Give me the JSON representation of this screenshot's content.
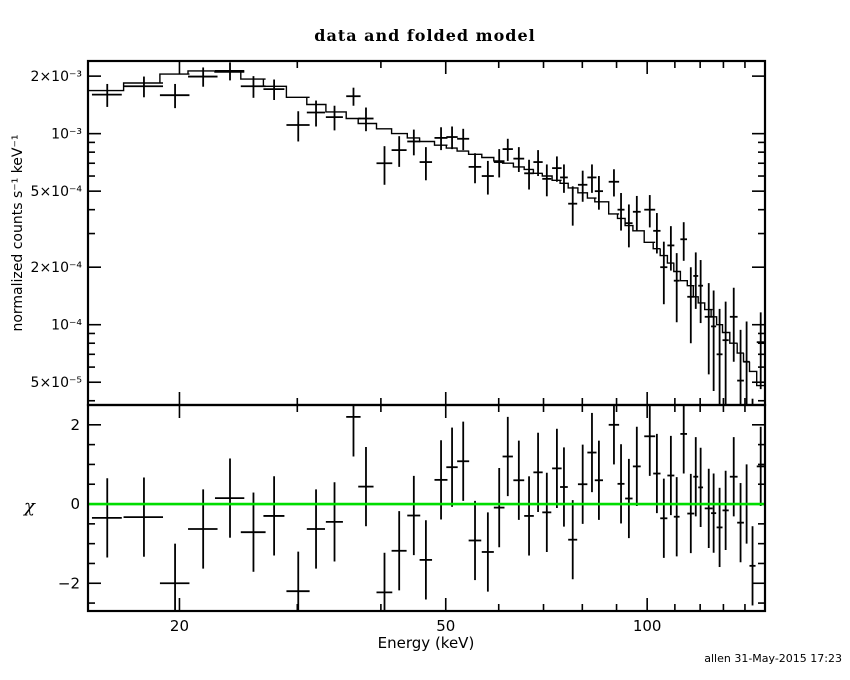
{
  "footer": {
    "timestamp": "allen 31-May-2015 17:23"
  },
  "colors": {
    "foreground": "#000000",
    "background": "#ffffff",
    "zero_line": "#00dd00"
  },
  "chart_data": {
    "type": "scatter",
    "title": "data and folded model",
    "xlabel": "Energy (keV)",
    "xscale": "log",
    "xlim": [
      14.6,
      150
    ],
    "grid": false,
    "legend": "none",
    "x_major_ticks": [
      {
        "v": 20,
        "label": "20"
      },
      {
        "v": 50,
        "label": "50"
      },
      {
        "v": 100,
        "label": "100"
      }
    ],
    "x_minor_ticks": [
      30,
      40,
      60,
      70,
      80,
      90,
      110,
      120,
      130,
      140
    ],
    "spectrum_panel": {
      "ylabel": "normalized counts s⁻¹ keV⁻¹",
      "yscale": "log",
      "ylim": [
        3.8e-05,
        0.0024
      ],
      "y_major_ticks": [
        {
          "v": 0.002,
          "label": "2×10⁻³"
        },
        {
          "v": 0.001,
          "label": "10⁻³"
        },
        {
          "v": 0.0005,
          "label": "5×10⁻⁴"
        },
        {
          "v": 0.0002,
          "label": "2×10⁻⁴"
        },
        {
          "v": 0.0001,
          "label": "10⁻⁴"
        },
        {
          "v": 5e-05,
          "label": "5×10⁻⁵"
        }
      ],
      "y_minor_ticks": [
        4e-05,
        6e-05,
        7e-05,
        8e-05,
        9e-05,
        0.0003,
        0.0004,
        0.0006,
        0.0007,
        0.0008,
        0.0009
      ],
      "series": [
        "data (crosses with error bars)",
        "folded model (stepped line)"
      ]
    },
    "chi_panel": {
      "ylabel": "χ",
      "yscale": "linear",
      "ylim": [
        -2.7,
        2.5
      ],
      "y_major_ticks": [
        {
          "v": 2,
          "label": "2"
        },
        {
          "v": 0,
          "label": "0"
        },
        {
          "v": -2,
          "label": "−2"
        }
      ],
      "y_minor_ticks": [
        1.5,
        1,
        0.5,
        -0.5,
        -1,
        -1.5,
        -2.5
      ],
      "chi_err": 1,
      "zero_line": 0
    },
    "bins": [
      {
        "e": 15.6,
        "de": 0.8,
        "rate": 0.0016,
        "rate_err": 0.00022,
        "model": 0.00168,
        "chi": -0.35
      },
      {
        "e": 17.7,
        "de": 1.2,
        "rate": 0.00177,
        "rate_err": 0.00022,
        "model": 0.00184,
        "chi": -0.33
      },
      {
        "e": 19.7,
        "de": 1.0,
        "rate": 0.00159,
        "rate_err": 0.00023,
        "model": 0.00205,
        "chi": -2.0
      },
      {
        "e": 21.7,
        "de": 1.1,
        "rate": 0.00199,
        "rate_err": 0.00023,
        "model": 0.00213,
        "chi": -0.63
      },
      {
        "e": 23.8,
        "de": 1.2,
        "rate": 0.00213,
        "rate_err": 0.00023,
        "model": 0.0021,
        "chi": 0.15
      },
      {
        "e": 25.8,
        "de": 1.1,
        "rate": 0.00177,
        "rate_err": 0.00023,
        "model": 0.00193,
        "chi": -0.71
      },
      {
        "e": 27.7,
        "de": 1.0,
        "rate": 0.00171,
        "rate_err": 0.00021,
        "model": 0.00177,
        "chi": -0.3
      },
      {
        "e": 30.1,
        "de": 1.2,
        "rate": 0.00111,
        "rate_err": 0.0002,
        "model": 0.00155,
        "chi": -2.2
      },
      {
        "e": 32.0,
        "de": 1.0,
        "rate": 0.00129,
        "rate_err": 0.0002,
        "model": 0.00142,
        "chi": -0.63
      },
      {
        "e": 34.1,
        "de": 1.0,
        "rate": 0.00122,
        "rate_err": 0.00018,
        "model": 0.0013,
        "chi": -0.45
      },
      {
        "e": 36.4,
        "de": 0.9,
        "rate": 0.00157,
        "rate_err": 0.00017,
        "model": 0.0012,
        "chi": 2.2
      },
      {
        "e": 38.0,
        "de": 1.0,
        "rate": 0.0012,
        "rate_err": 0.00017,
        "model": 0.00113,
        "chi": 0.44
      },
      {
        "e": 40.5,
        "de": 1.1,
        "rate": 0.0007,
        "rate_err": 0.00016,
        "model": 0.00106,
        "chi": -2.23
      },
      {
        "e": 42.6,
        "de": 1.1,
        "rate": 0.00082,
        "rate_err": 0.00015,
        "model": 0.001,
        "chi": -1.18
      },
      {
        "e": 44.8,
        "de": 1.0,
        "rate": 0.00091,
        "rate_err": 0.00014,
        "model": 0.00095,
        "chi": -0.29
      },
      {
        "e": 46.7,
        "de": 1.0,
        "rate": 0.00071,
        "rate_err": 0.00014,
        "model": 0.00091,
        "chi": -1.41
      },
      {
        "e": 49.2,
        "de": 1.1,
        "rate": 0.00095,
        "rate_err": 0.00013,
        "model": 0.00087,
        "chi": 0.61
      },
      {
        "e": 51.1,
        "de": 1.0,
        "rate": 0.00096,
        "rate_err": 0.00013,
        "model": 0.00084,
        "chi": 0.93
      },
      {
        "e": 53.1,
        "de": 1.1,
        "rate": 0.00094,
        "rate_err": 0.00012,
        "model": 0.00081,
        "chi": 1.08
      },
      {
        "e": 55.3,
        "de": 1.2,
        "rate": 0.00067,
        "rate_err": 0.00012,
        "model": 0.00078,
        "chi": -0.92
      },
      {
        "e": 57.8,
        "de": 1.2,
        "rate": 0.0006,
        "rate_err": 0.00012,
        "model": 0.00075,
        "chi": -1.21
      },
      {
        "e": 60.1,
        "de": 1.1,
        "rate": 0.00071,
        "rate_err": 0.00012,
        "model": 0.00072,
        "chi": -0.09
      },
      {
        "e": 61.9,
        "de": 1.1,
        "rate": 0.00083,
        "rate_err": 0.00011,
        "model": 0.0007,
        "chi": 1.2
      },
      {
        "e": 64.3,
        "de": 1.2,
        "rate": 0.00074,
        "rate_err": 0.00011,
        "model": 0.00067,
        "chi": 0.6
      },
      {
        "e": 66.6,
        "de": 1.1,
        "rate": 0.00062,
        "rate_err": 0.00011,
        "model": 0.00065,
        "chi": -0.3
      },
      {
        "e": 68.7,
        "de": 1.1,
        "rate": 0.00071,
        "rate_err": 0.00011,
        "model": 0.00062,
        "chi": 0.8
      },
      {
        "e": 70.8,
        "de": 1.1,
        "rate": 0.00058,
        "rate_err": 0.00011,
        "model": 0.0006,
        "chi": -0.21
      },
      {
        "e": 73.3,
        "de": 1.2,
        "rate": 0.00066,
        "rate_err": 0.0001,
        "model": 0.00057,
        "chi": 0.9
      },
      {
        "e": 75.1,
        "de": 1.0,
        "rate": 0.00059,
        "rate_err": 0.0001,
        "model": 0.00055,
        "chi": 0.43
      },
      {
        "e": 77.4,
        "de": 1.2,
        "rate": 0.00043,
        "rate_err": 0.0001,
        "model": 0.00052,
        "chi": -0.9
      },
      {
        "e": 80.1,
        "de": 1.3,
        "rate": 0.00054,
        "rate_err": 0.0001,
        "model": 0.00049,
        "chi": 0.5
      },
      {
        "e": 82.7,
        "de": 1.3,
        "rate": 0.00059,
        "rate_err": 0.0001,
        "model": 0.00046,
        "chi": 1.3
      },
      {
        "e": 84.7,
        "de": 1.2,
        "rate": 0.0005,
        "rate_err": 0.0001,
        "model": 0.00044,
        "chi": 0.6
      },
      {
        "e": 89.2,
        "de": 1.6,
        "rate": 0.00056,
        "rate_err": 9.1e-05,
        "model": 0.00038,
        "chi": 2.0
      },
      {
        "e": 91.4,
        "de": 1.1,
        "rate": 0.0004,
        "rate_err": 8.9e-05,
        "model": 0.00036,
        "chi": 0.51
      },
      {
        "e": 93.9,
        "de": 1.2,
        "rate": 0.00034,
        "rate_err": 8.6e-05,
        "model": 0.00033,
        "chi": 0.14
      },
      {
        "e": 96.5,
        "de": 1.3,
        "rate": 0.00039,
        "rate_err": 8.2e-05,
        "model": 0.00031,
        "chi": 0.95
      },
      {
        "e": 100.9,
        "de": 1.9,
        "rate": 0.0004,
        "rate_err": 7.7e-05,
        "model": 0.00027,
        "chi": 1.71
      },
      {
        "e": 103.4,
        "de": 1.3,
        "rate": 0.00031,
        "rate_err": 7.4e-05,
        "model": 0.00025,
        "chi": 0.77
      },
      {
        "e": 105.9,
        "de": 1.3,
        "rate": 0.0002,
        "rate_err": 7.2e-05,
        "model": 0.00023,
        "chi": -0.36
      },
      {
        "e": 108.5,
        "de": 1.3,
        "rate": 0.00026,
        "rate_err": 6.8e-05,
        "model": 0.00021,
        "chi": 0.72
      },
      {
        "e": 110.7,
        "de": 1.1,
        "rate": 0.00017,
        "rate_err": 6.7e-05,
        "model": 0.00019,
        "chi": -0.32
      },
      {
        "e": 113.4,
        "de": 1.3,
        "rate": 0.00028,
        "rate_err": 6.4e-05,
        "model": 0.00017,
        "chi": 1.77
      },
      {
        "e": 116.2,
        "de": 1.4,
        "rate": 0.00014,
        "rate_err": 6e-05,
        "model": 0.00016,
        "chi": -0.24
      },
      {
        "e": 118.2,
        "de": 1.0,
        "rate": 0.00018,
        "rate_err": 5.9e-05,
        "model": 0.00014,
        "chi": 0.69
      },
      {
        "e": 120.2,
        "de": 1.0,
        "rate": 0.00016,
        "rate_err": 5.8e-05,
        "model": 0.00013,
        "chi": 0.42
      },
      {
        "e": 123.6,
        "de": 1.7,
        "rate": 0.00011,
        "rate_err": 5.5e-05,
        "model": 0.00012,
        "chi": -0.11
      },
      {
        "e": 125.7,
        "de": 1.1,
        "rate": 9.8e-05,
        "rate_err": 5.3e-05,
        "model": 0.00011,
        "chi": -0.23
      },
      {
        "e": 128.3,
        "de": 1.3,
        "rate": 7e-05,
        "rate_err": 5.1e-05,
        "model": 0.0001,
        "chi": -0.59
      },
      {
        "e": 131.0,
        "de": 1.4,
        "rate": 8.3e-05,
        "rate_err": 4.9e-05,
        "model": 9.1e-05,
        "chi": -0.16
      },
      {
        "e": 134.7,
        "de": 1.8,
        "rate": 0.00011,
        "rate_err": 4.6e-05,
        "model": 8e-05,
        "chi": 0.69
      },
      {
        "e": 137.9,
        "de": 1.6,
        "rate": 5.1e-05,
        "rate_err": 4.3e-05,
        "model": 7.1e-05,
        "chi": -0.47
      },
      {
        "e": 140.8,
        "de": 1.5,
        "rate": 6.4e-05,
        "rate_err": 4e-05,
        "model": 6.4e-05,
        "chi": 0.0
      },
      {
        "e": 143.7,
        "de": 1.5,
        "rate": 1.2e-05,
        "rate_err": 2.9e-05,
        "model": 5.7e-05,
        "chi": -1.56
      },
      {
        "e": 147.8,
        "de": 2.0,
        "rate": 8.1e-05,
        "rate_err": 3.5e-05,
        "model": 4.8e-05,
        "chi": 0.95
      }
    ]
  }
}
